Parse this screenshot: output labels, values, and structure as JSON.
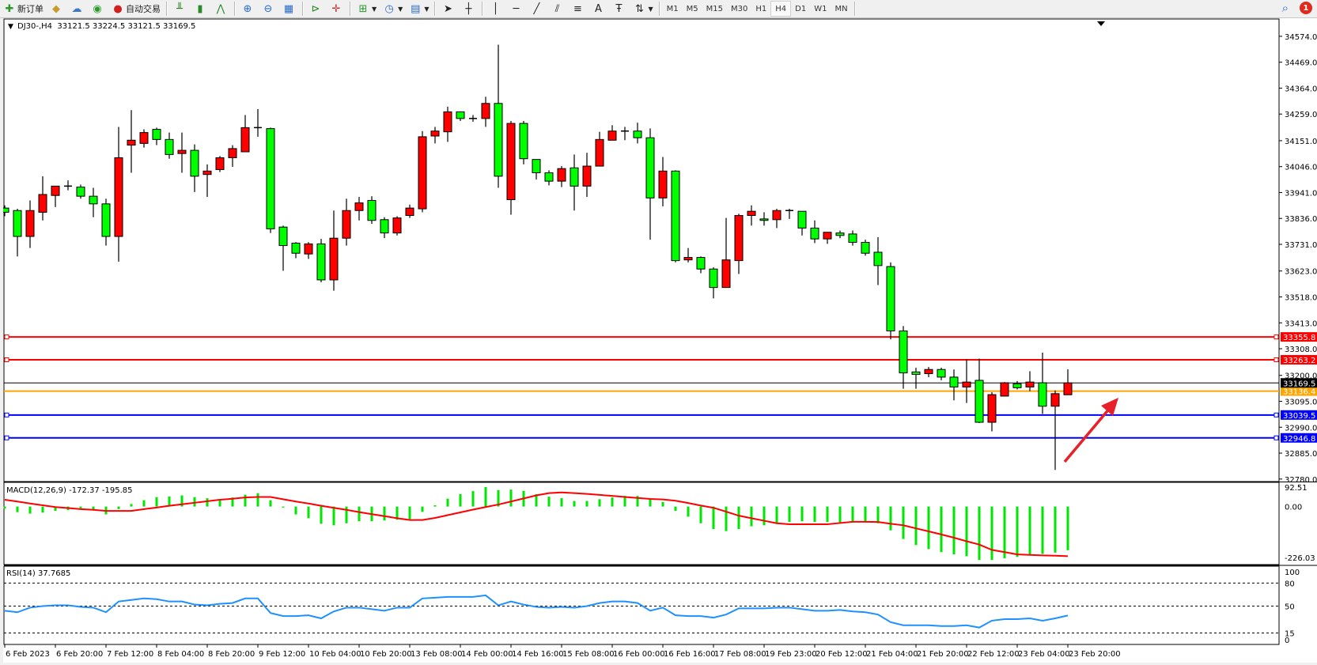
{
  "toolbar": {
    "new_order": {
      "label": "新订单",
      "icon": "new-order-icon"
    },
    "auto_trading": {
      "label": "自动交易",
      "icon": "auto-trading-icon"
    },
    "timeframes": [
      "M1",
      "M5",
      "M15",
      "M30",
      "H1",
      "H4",
      "D1",
      "W1",
      "MN"
    ],
    "active_timeframe": "H4",
    "notification_count": "1"
  },
  "chart": {
    "header": "DJ30-,H4  33121.5 33224.5 33121.5 33169.5",
    "macd_label": "MACD(12,26,9) -172.37 -195.85",
    "rsi_label": "RSI(14) 37.7685"
  },
  "colors": {
    "bull_candle": "#ff0000",
    "bear_candle": "#00ff00",
    "macd_histogram": "#00e600",
    "macd_signal": "#ff0000",
    "rsi_line": "#1e90ff",
    "arrow": "#e8202a"
  },
  "chart_data": [
    {
      "type": "candlestick",
      "symbol": "DJ30-",
      "timeframe": "H4",
      "ylim": [
        32773,
        34641
      ],
      "y_ticks": [
        "34574.0",
        "34469.0",
        "34364.0",
        "34259.0",
        "34151.0",
        "34046.0",
        "33941.0",
        "33836.0",
        "33731.0",
        "33623.0",
        "33518.0",
        "33413.0",
        "33308.0",
        "33200.0",
        "33095.0",
        "32990.0",
        "32885.0",
        "32780.0"
      ],
      "x_tick_labels": [
        "6 Feb 2023",
        "6 Feb 20:00",
        "7 Feb 12:00",
        "8 Feb 04:00",
        "8 Feb 20:00",
        "9 Feb 12:00",
        "10 Feb 04:00",
        "10 Feb 20:00",
        "13 Feb 08:00",
        "14 Feb 00:00",
        "14 Feb 16:00",
        "15 Feb 08:00",
        "16 Feb 00:00",
        "16 Feb 16:00",
        "17 Feb 08:00",
        "19 Feb 23:00",
        "20 Feb 12:00",
        "21 Feb 04:00",
        "21 Feb 20:00",
        "22 Feb 12:00",
        "23 Feb 04:00",
        "23 Feb 20:00"
      ],
      "x_tick_every_bars": 4,
      "ohlc": [
        [
          33878,
          33889,
          33845,
          33861
        ],
        [
          33868,
          33875,
          33682,
          33763
        ],
        [
          33763,
          33909,
          33716,
          33868
        ],
        [
          33861,
          34007,
          33828,
          33933
        ],
        [
          33929,
          33967,
          33882,
          33967
        ],
        [
          33967,
          33990,
          33950,
          33963
        ],
        [
          33963,
          33973,
          33916,
          33926
        ],
        [
          33926,
          33960,
          33841,
          33895
        ],
        [
          33895,
          33916,
          33726,
          33763
        ],
        [
          33763,
          34207,
          33661,
          34082
        ],
        [
          34133,
          34275,
          34021,
          34153
        ],
        [
          34140,
          34197,
          34123,
          34184
        ],
        [
          34197,
          34204,
          34133,
          34156
        ],
        [
          34156,
          34184,
          34078,
          34095
        ],
        [
          34099,
          34184,
          34021,
          34112
        ],
        [
          34112,
          34136,
          33943,
          34007
        ],
        [
          34014,
          34055,
          33923,
          34028
        ],
        [
          34034,
          34089,
          34024,
          34082
        ],
        [
          34082,
          34133,
          34045,
          34119
        ],
        [
          34106,
          34255,
          34106,
          34204
        ],
        [
          34204,
          34279,
          34167,
          34200
        ],
        [
          34200,
          34204,
          33777,
          33794
        ],
        [
          33801,
          33807,
          33624,
          33726
        ],
        [
          33736,
          33740,
          33675,
          33695
        ],
        [
          33692,
          33740,
          33672,
          33733
        ],
        [
          33733,
          33753,
          33577,
          33587
        ],
        [
          33587,
          33868,
          33543,
          33756
        ],
        [
          33756,
          33916,
          33726,
          33868
        ],
        [
          33868,
          33923,
          33828,
          33899
        ],
        [
          33909,
          33926,
          33814,
          33828
        ],
        [
          33831,
          33841,
          33756,
          33777
        ],
        [
          33777,
          33845,
          33767,
          33838
        ],
        [
          33848,
          33892,
          33838,
          33878
        ],
        [
          33875,
          34190,
          33861,
          34167
        ],
        [
          34170,
          34207,
          34140,
          34190
        ],
        [
          34187,
          34289,
          34146,
          34268
        ],
        [
          34268,
          34268,
          34231,
          34241
        ],
        [
          34241,
          34255,
          34228,
          34238
        ],
        [
          34241,
          34329,
          34207,
          34302
        ],
        [
          34302,
          34540,
          33960,
          34007
        ],
        [
          33912,
          34231,
          33851,
          34221
        ],
        [
          34221,
          34231,
          34055,
          34078
        ],
        [
          34075,
          34075,
          33994,
          34021
        ],
        [
          34021,
          34031,
          33970,
          33987
        ],
        [
          33987,
          34048,
          33963,
          34038
        ],
        [
          34041,
          34095,
          33868,
          33967
        ],
        [
          33967,
          34102,
          33923,
          34048
        ],
        [
          34048,
          34187,
          34048,
          34156
        ],
        [
          34153,
          34214,
          34153,
          34190
        ],
        [
          34190,
          34207,
          34153,
          34187
        ],
        [
          34190,
          34224,
          34140,
          34163
        ],
        [
          34163,
          34201,
          33750,
          33919
        ],
        [
          33919,
          34085,
          33885,
          34028
        ],
        [
          34028,
          34031,
          33658,
          33665
        ],
        [
          33668,
          33716,
          33658,
          33678
        ],
        [
          33678,
          33682,
          33614,
          33631
        ],
        [
          33631,
          33638,
          33512,
          33556
        ],
        [
          33556,
          33838,
          33556,
          33668
        ],
        [
          33665,
          33855,
          33611,
          33848
        ],
        [
          33848,
          33889,
          33807,
          33865
        ],
        [
          33834,
          33861,
          33807,
          33828
        ],
        [
          33831,
          33875,
          33797,
          33868
        ],
        [
          33868,
          33875,
          33834,
          33865
        ],
        [
          33865,
          33865,
          33767,
          33797
        ],
        [
          33797,
          33828,
          33736,
          33753
        ],
        [
          33753,
          33780,
          33733,
          33780
        ],
        [
          33777,
          33787,
          33756,
          33767
        ],
        [
          33773,
          33787,
          33726,
          33739
        ],
        [
          33739,
          33750,
          33685,
          33695
        ],
        [
          33699,
          33760,
          33566,
          33645
        ],
        [
          33641,
          33658,
          33346,
          33380
        ],
        [
          33380,
          33400,
          33146,
          33210
        ],
        [
          33214,
          33231,
          33146,
          33204
        ],
        [
          33207,
          33234,
          33193,
          33224
        ],
        [
          33224,
          33231,
          33180,
          33193
        ],
        [
          33193,
          33224,
          33099,
          33153
        ],
        [
          33153,
          33265,
          33088,
          33173
        ],
        [
          33180,
          33268,
          33007,
          33010
        ],
        [
          33010,
          33132,
          32973,
          33122
        ],
        [
          33116,
          33173,
          33116,
          33170
        ],
        [
          33166,
          33177,
          33143,
          33150
        ],
        [
          33153,
          33217,
          33136,
          33173
        ],
        [
          33170,
          33292,
          33044,
          33075
        ],
        [
          33075,
          33139,
          32817,
          33126
        ],
        [
          33121.5,
          33224.5,
          33121.5,
          33169.5
        ]
      ],
      "current_price": {
        "value": 33169.5,
        "label": "33169.5",
        "color": "#000000"
      },
      "horizontal_lines": [
        {
          "value": 33355.8,
          "label": "33355.8",
          "color": "#ff0000"
        },
        {
          "value": 33263.2,
          "label": "33263.2",
          "color": "#ff0000"
        },
        {
          "value": 33136.4,
          "label": "33136.4",
          "color": "#ffa500"
        },
        {
          "value": 33039.5,
          "label": "33039.5",
          "color": "#0000ff"
        },
        {
          "value": 32946.8,
          "label": "32946.8",
          "color": "#0000ff"
        }
      ],
      "annotation": "up-arrow"
    },
    {
      "type": "bar",
      "indicator": "MACD(12,26,9)",
      "ylim": [
        -226.03,
        92.51
      ],
      "y_ticks": [
        "92.51",
        "0.00",
        "-226.03"
      ],
      "histogram": [
        -8,
        -22,
        -28,
        -24,
        -17,
        -14,
        -7,
        -14,
        -31,
        -10,
        10,
        25,
        37,
        40,
        44,
        37,
        33,
        29,
        36,
        47,
        53,
        25,
        -4,
        -31,
        -46,
        -68,
        -74,
        -66,
        -58,
        -58,
        -55,
        -52,
        -50,
        -21,
        5,
        31,
        49,
        61,
        77,
        65,
        67,
        62,
        49,
        39,
        33,
        22,
        22,
        29,
        36,
        42,
        42,
        31,
        18,
        -17,
        -40,
        -66,
        -89,
        -97,
        -89,
        -78,
        -74,
        -66,
        -61,
        -58,
        -61,
        -61,
        -63,
        -61,
        -58,
        -66,
        -94,
        -128,
        -152,
        -168,
        -180,
        -189,
        -196,
        -211,
        -211,
        -204,
        -199,
        -190,
        -187,
        -182,
        -172.37
      ],
      "signal": [
        27,
        20,
        12,
        5,
        -2,
        -6,
        -10,
        -13,
        -17,
        -17,
        -17,
        -10,
        -4,
        3,
        9,
        15,
        21,
        27,
        31,
        36,
        38,
        38,
        29,
        20,
        12,
        3,
        -5,
        -13,
        -22,
        -30,
        -38,
        -46,
        -53,
        -53,
        -45,
        -34,
        -23,
        -12,
        -2,
        8,
        20,
        32,
        44,
        53,
        56,
        53,
        50,
        46,
        42,
        38,
        34,
        30,
        28,
        23,
        14,
        4,
        -5,
        -20,
        -36,
        -46,
        -56,
        -66,
        -70,
        -70,
        -70,
        -70,
        -65,
        -60,
        -60,
        -61,
        -68,
        -74,
        -86,
        -98,
        -110,
        -123,
        -137,
        -150,
        -171,
        -180,
        -189,
        -191,
        -193,
        -194,
        -195.85
      ]
    },
    {
      "type": "line",
      "indicator": "RSI(14)",
      "ylim": [
        0,
        100
      ],
      "y_ticks": [
        "100",
        "80",
        "50",
        "15",
        "0"
      ],
      "levels": [
        80,
        50,
        15
      ],
      "values": [
        44,
        42,
        48,
        50,
        51,
        51,
        49,
        48,
        42,
        56,
        58,
        60,
        59,
        56,
        56,
        52,
        51,
        53,
        54,
        60,
        60,
        41,
        37,
        37,
        38,
        34,
        43,
        48,
        48,
        46,
        44,
        48,
        48,
        60,
        61,
        62,
        62,
        62,
        64,
        51,
        56,
        52,
        49,
        48,
        49,
        48,
        50,
        54,
        56,
        56,
        54,
        44,
        48,
        38,
        37,
        37,
        35,
        39,
        47,
        47,
        47,
        48,
        48,
        46,
        44,
        44,
        45,
        43,
        42,
        39,
        29,
        25,
        25,
        25,
        24,
        24,
        25,
        22,
        31,
        33,
        33,
        34,
        31,
        34,
        37.7685
      ]
    }
  ]
}
